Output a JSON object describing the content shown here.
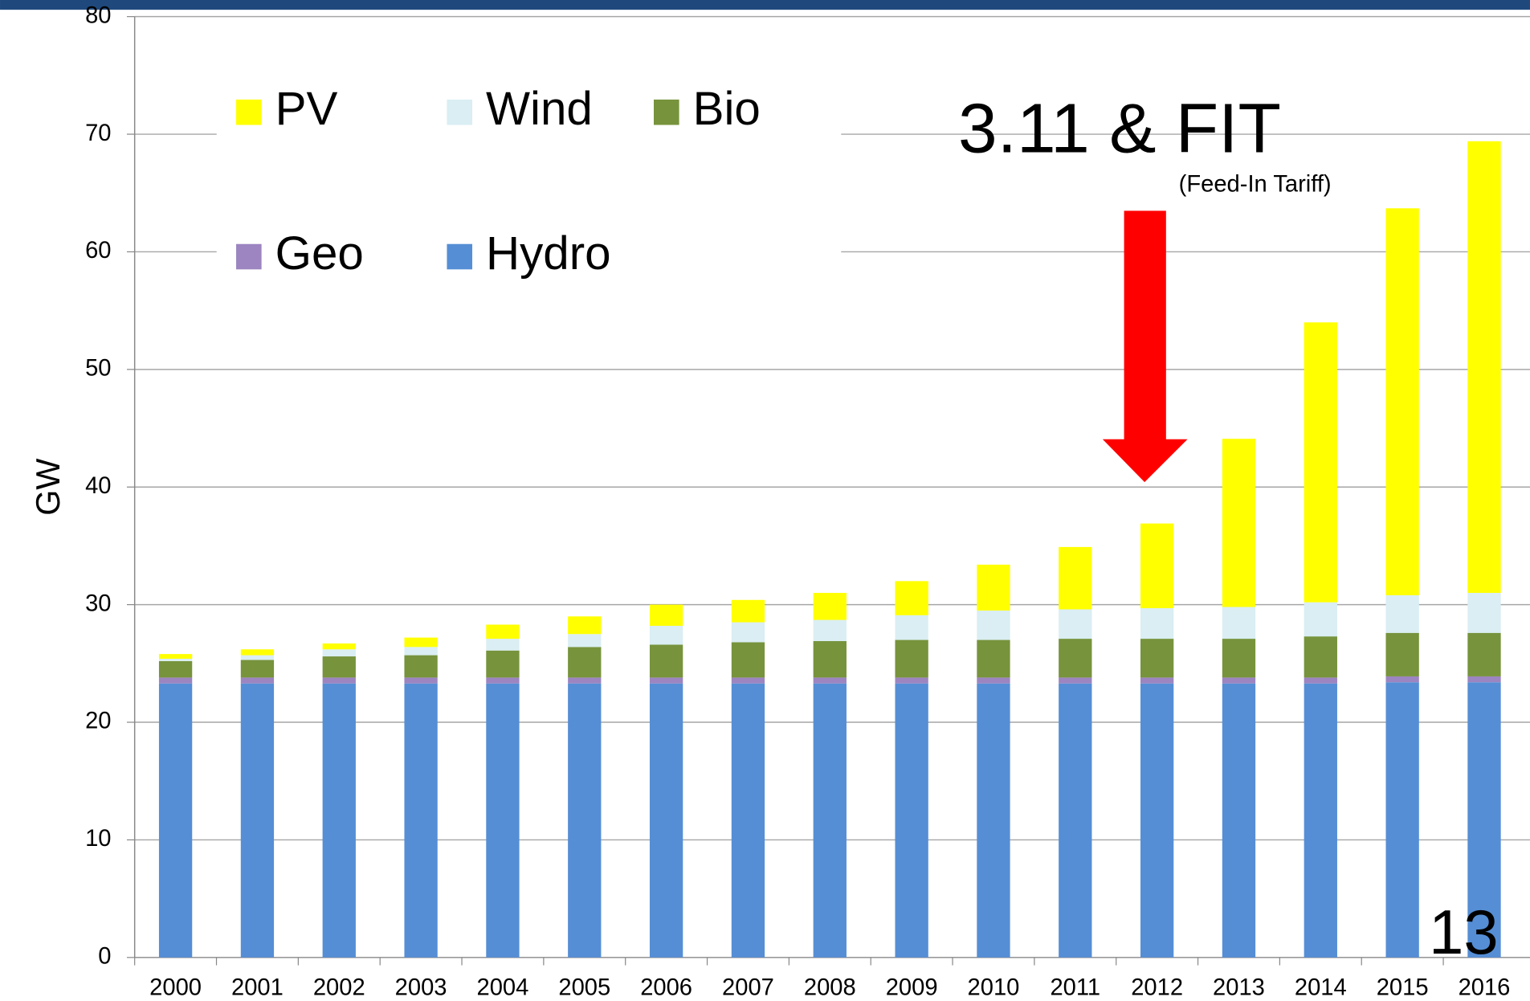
{
  "chart_data": {
    "type": "stacked_bar",
    "ylabel": "GW",
    "annotation": "3.11 & FIT",
    "annotation_note": "(Feed-In Tariff)",
    "page_number": "13",
    "categories": [
      "2000",
      "2001",
      "2002",
      "2003",
      "2004",
      "2005",
      "2006",
      "2007",
      "2008",
      "2009",
      "2010",
      "2011",
      "2012",
      "2013",
      "2014",
      "2015",
      "2016"
    ],
    "series": [
      {
        "name": "Hydro",
        "color": "#558ed5",
        "values": [
          23.3,
          23.3,
          23.3,
          23.3,
          23.3,
          23.3,
          23.3,
          23.3,
          23.3,
          23.3,
          23.3,
          23.3,
          23.3,
          23.3,
          23.3,
          23.4,
          23.4
        ]
      },
      {
        "name": "Geo",
        "color": "#9c85c0",
        "values": [
          0.5,
          0.5,
          0.5,
          0.5,
          0.5,
          0.5,
          0.5,
          0.5,
          0.5,
          0.5,
          0.5,
          0.5,
          0.5,
          0.5,
          0.5,
          0.5,
          0.5
        ]
      },
      {
        "name": "Bio",
        "color": "#77933c",
        "values": [
          1.4,
          1.5,
          1.8,
          1.9,
          2.3,
          2.6,
          2.8,
          3.0,
          3.1,
          3.2,
          3.2,
          3.3,
          3.3,
          3.3,
          3.5,
          3.7,
          3.7
        ]
      },
      {
        "name": "Wind",
        "color": "#daeef3",
        "values": [
          0.2,
          0.4,
          0.6,
          0.7,
          1.0,
          1.1,
          1.6,
          1.7,
          1.8,
          2.1,
          2.5,
          2.5,
          2.6,
          2.7,
          2.9,
          3.2,
          3.4
        ]
      },
      {
        "name": "PV",
        "color": "#ffff00",
        "values": [
          0.4,
          0.5,
          0.5,
          0.8,
          1.2,
          1.5,
          1.8,
          1.9,
          2.3,
          2.9,
          3.9,
          5.3,
          7.2,
          14.3,
          23.8,
          32.9,
          38.4
        ]
      }
    ],
    "ylim": [
      0,
      80
    ],
    "yticks": [
      0,
      10,
      20,
      30,
      40,
      50,
      60,
      70,
      80
    ],
    "grid": true
  }
}
